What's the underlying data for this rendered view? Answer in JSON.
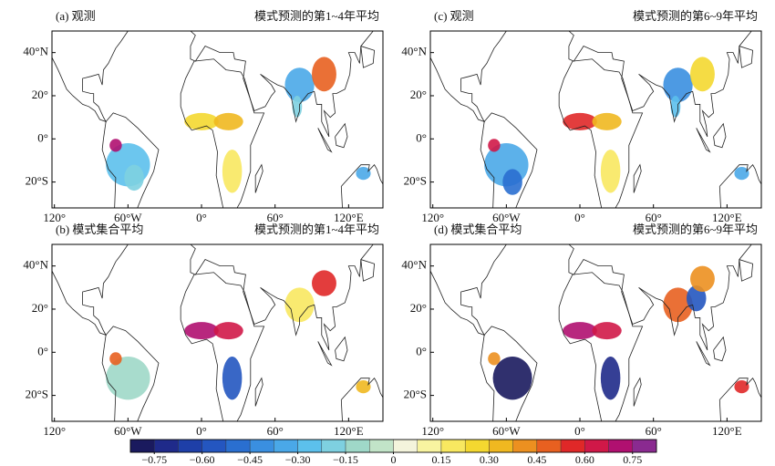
{
  "panels": [
    {
      "title_left": "(a) 观测",
      "title_right": "模式预测的第1~4年平均"
    },
    {
      "title_left": "(c) 观测",
      "title_right": "模式预测的第6~9年平均"
    },
    {
      "title_left": "(b) 模式集合平均",
      "title_right": "模式预测的第1~4年平均"
    },
    {
      "title_left": "(d) 模式集合平均",
      "title_right": "模式预测的第6~9年平均"
    }
  ],
  "lon_range": [
    -122,
    148
  ],
  "lat_range": [
    -32,
    50
  ],
  "lon_ticks": [
    {
      "value": -120,
      "label": "120°"
    },
    {
      "value": -60,
      "label": "60°W"
    },
    {
      "value": 0,
      "label": "0°"
    },
    {
      "value": 60,
      "label": "60°"
    },
    {
      "value": 120,
      "label": "120°E"
    }
  ],
  "lat_ticks": [
    {
      "value": 40,
      "label": "40°N"
    },
    {
      "value": 20,
      "label": "20°"
    },
    {
      "value": 0,
      "label": "0°"
    },
    {
      "value": -20,
      "label": "20°S"
    }
  ],
  "colorbar": {
    "lim": [
      -0.825,
      0.825
    ],
    "colors": [
      "#1a1a5e",
      "#1f2a8a",
      "#1e3fa8",
      "#2456c0",
      "#2a6fd0",
      "#3a8fe0",
      "#4aa8e8",
      "#5cc0ec",
      "#7ed0e0",
      "#9fd8c8",
      "#c2e4c8",
      "#f4f4dc",
      "#f8f4a0",
      "#f8e860",
      "#f4d830",
      "#f0b820",
      "#ec9020",
      "#e86020",
      "#e02828",
      "#d01848",
      "#b01070",
      "#8a2a90"
    ],
    "ticks": [
      {
        "value": -0.75,
        "label": "−0.75"
      },
      {
        "value": -0.6,
        "label": "−0.60"
      },
      {
        "value": -0.45,
        "label": "−0.45"
      },
      {
        "value": -0.3,
        "label": "−0.30"
      },
      {
        "value": -0.15,
        "label": "−0.15"
      },
      0,
      0.15,
      {
        "value": 0.3,
        "label": "0.30"
      },
      0.45,
      {
        "value": 0.6,
        "label": "0.60"
      },
      0.75
    ]
  }
}
